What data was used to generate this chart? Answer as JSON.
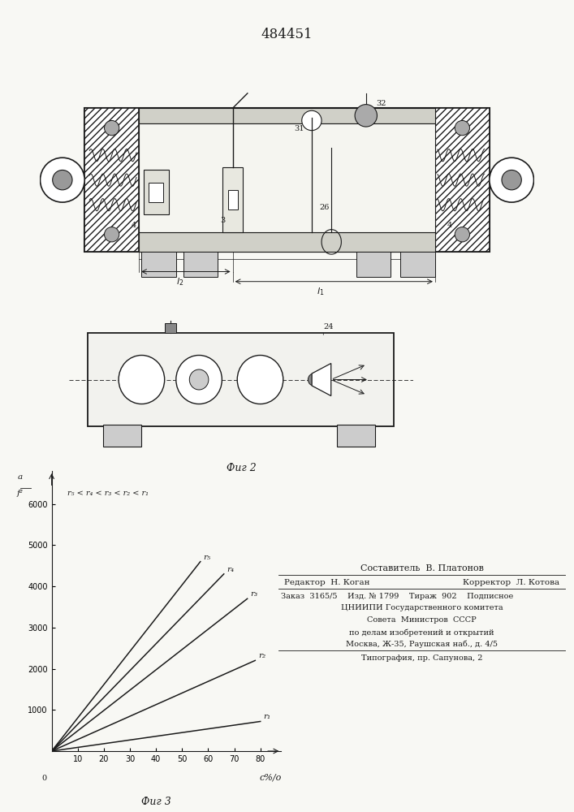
{
  "patent_number": "484451",
  "bg": "#f8f8f4",
  "graph": {
    "ylabel": "a\nf²",
    "xlabel": "c%/о",
    "ylim": [
      0,
      6800
    ],
    "xlim": [
      0,
      88
    ],
    "yticks": [
      1000,
      2000,
      3000,
      4000,
      5000,
      6000
    ],
    "xticks": [
      10,
      20,
      30,
      40,
      50,
      60,
      70,
      80
    ],
    "legend_text": "r₅ < r₄ < r₃ < r₂ < r₁",
    "lines": [
      {
        "label": "r₅",
        "x0": 0,
        "x1": 57,
        "y0": 0,
        "y1": 4600
      },
      {
        "label": "r₄",
        "x0": 0,
        "x1": 66,
        "y0": 0,
        "y1": 4300
      },
      {
        "label": "r₃",
        "x0": 0,
        "x1": 75,
        "y0": 0,
        "y1": 3700
      },
      {
        "label": "r₂",
        "x0": 0,
        "x1": 78,
        "y0": 0,
        "y1": 2200
      },
      {
        "label": "r₁",
        "x0": 0,
        "x1": 80,
        "y0": 0,
        "y1": 720
      }
    ],
    "fig3_label": "Фиг 3"
  },
  "fig2_label": "Фиг 2",
  "footer": {
    "compiler_line": "Составитель  В. Платонов",
    "editor_label": "Редактор",
    "editor_name": "Н. Коган",
    "corrector_label": "Корректор",
    "corrector_name": "Л. Котова",
    "order": "Заказ  3165/5",
    "izd": "Изд. № 1799",
    "tirazh": "Тираж  902",
    "podp": "Подписное",
    "org_lines": [
      "ЦНИИПИ Государственного комитета",
      "Совета  Министров  СССР",
      "по делам изобретений и открытий",
      "Москва, Ж-35, Раушская наб., д. 4/5"
    ],
    "print_line": "Типография, пр. Сапунова, 2"
  }
}
